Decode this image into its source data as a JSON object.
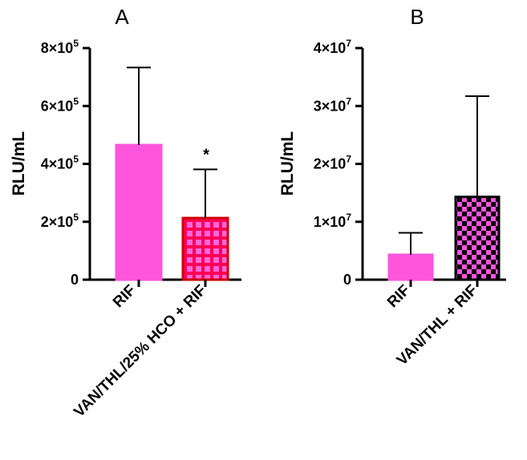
{
  "chart_data": [
    {
      "type": "bar",
      "panel": "A",
      "title": "A",
      "ylabel": "RLU/mL",
      "ylim": [
        0,
        800000
      ],
      "ytick_values": [
        0,
        200000,
        400000,
        600000,
        800000
      ],
      "ytick_labels": [
        {
          "base": "0",
          "exp": ""
        },
        {
          "base": "2×10",
          "exp": "5"
        },
        {
          "base": "4×10",
          "exp": "5"
        },
        {
          "base": "6×10",
          "exp": "5"
        },
        {
          "base": "8×10",
          "exp": "5"
        }
      ],
      "categories": [
        "RIF",
        "VAN/THL/25% HCO + RIF"
      ],
      "values": [
        465000,
        213000
      ],
      "errors": [
        268000,
        168000
      ],
      "annotations": [
        {
          "category_index": 1,
          "text": "*"
        }
      ],
      "bar_styles": [
        {
          "fill": "#ff55dd",
          "pattern": "none",
          "stroke": "#ff55dd"
        },
        {
          "fill": "#ff0055",
          "pattern": "grid",
          "pattern_color": "#ff66dd",
          "stroke": "#cc0000"
        }
      ],
      "grid": false
    },
    {
      "type": "bar",
      "panel": "B",
      "title": "B",
      "ylabel": "RLU/mL",
      "ylim": [
        0,
        40000000
      ],
      "ytick_values": [
        0,
        10000000,
        20000000,
        30000000,
        40000000
      ],
      "ytick_labels": [
        {
          "base": "0",
          "exp": ""
        },
        {
          "base": "1×10",
          "exp": "7"
        },
        {
          "base": "2×10",
          "exp": "7"
        },
        {
          "base": "3×10",
          "exp": "7"
        },
        {
          "base": "4×10",
          "exp": "7"
        }
      ],
      "categories": [
        "RIF",
        "VAN/THL + RIF"
      ],
      "values": [
        4300000,
        14300000
      ],
      "errors": [
        3800000,
        17400000
      ],
      "annotations": [],
      "bar_styles": [
        {
          "fill": "#ff55dd",
          "pattern": "none",
          "stroke": "#ff55dd"
        },
        {
          "fill": "#ff55dd",
          "pattern": "checker",
          "pattern_color": "#000000",
          "stroke": "#000000"
        }
      ],
      "grid": false
    }
  ]
}
